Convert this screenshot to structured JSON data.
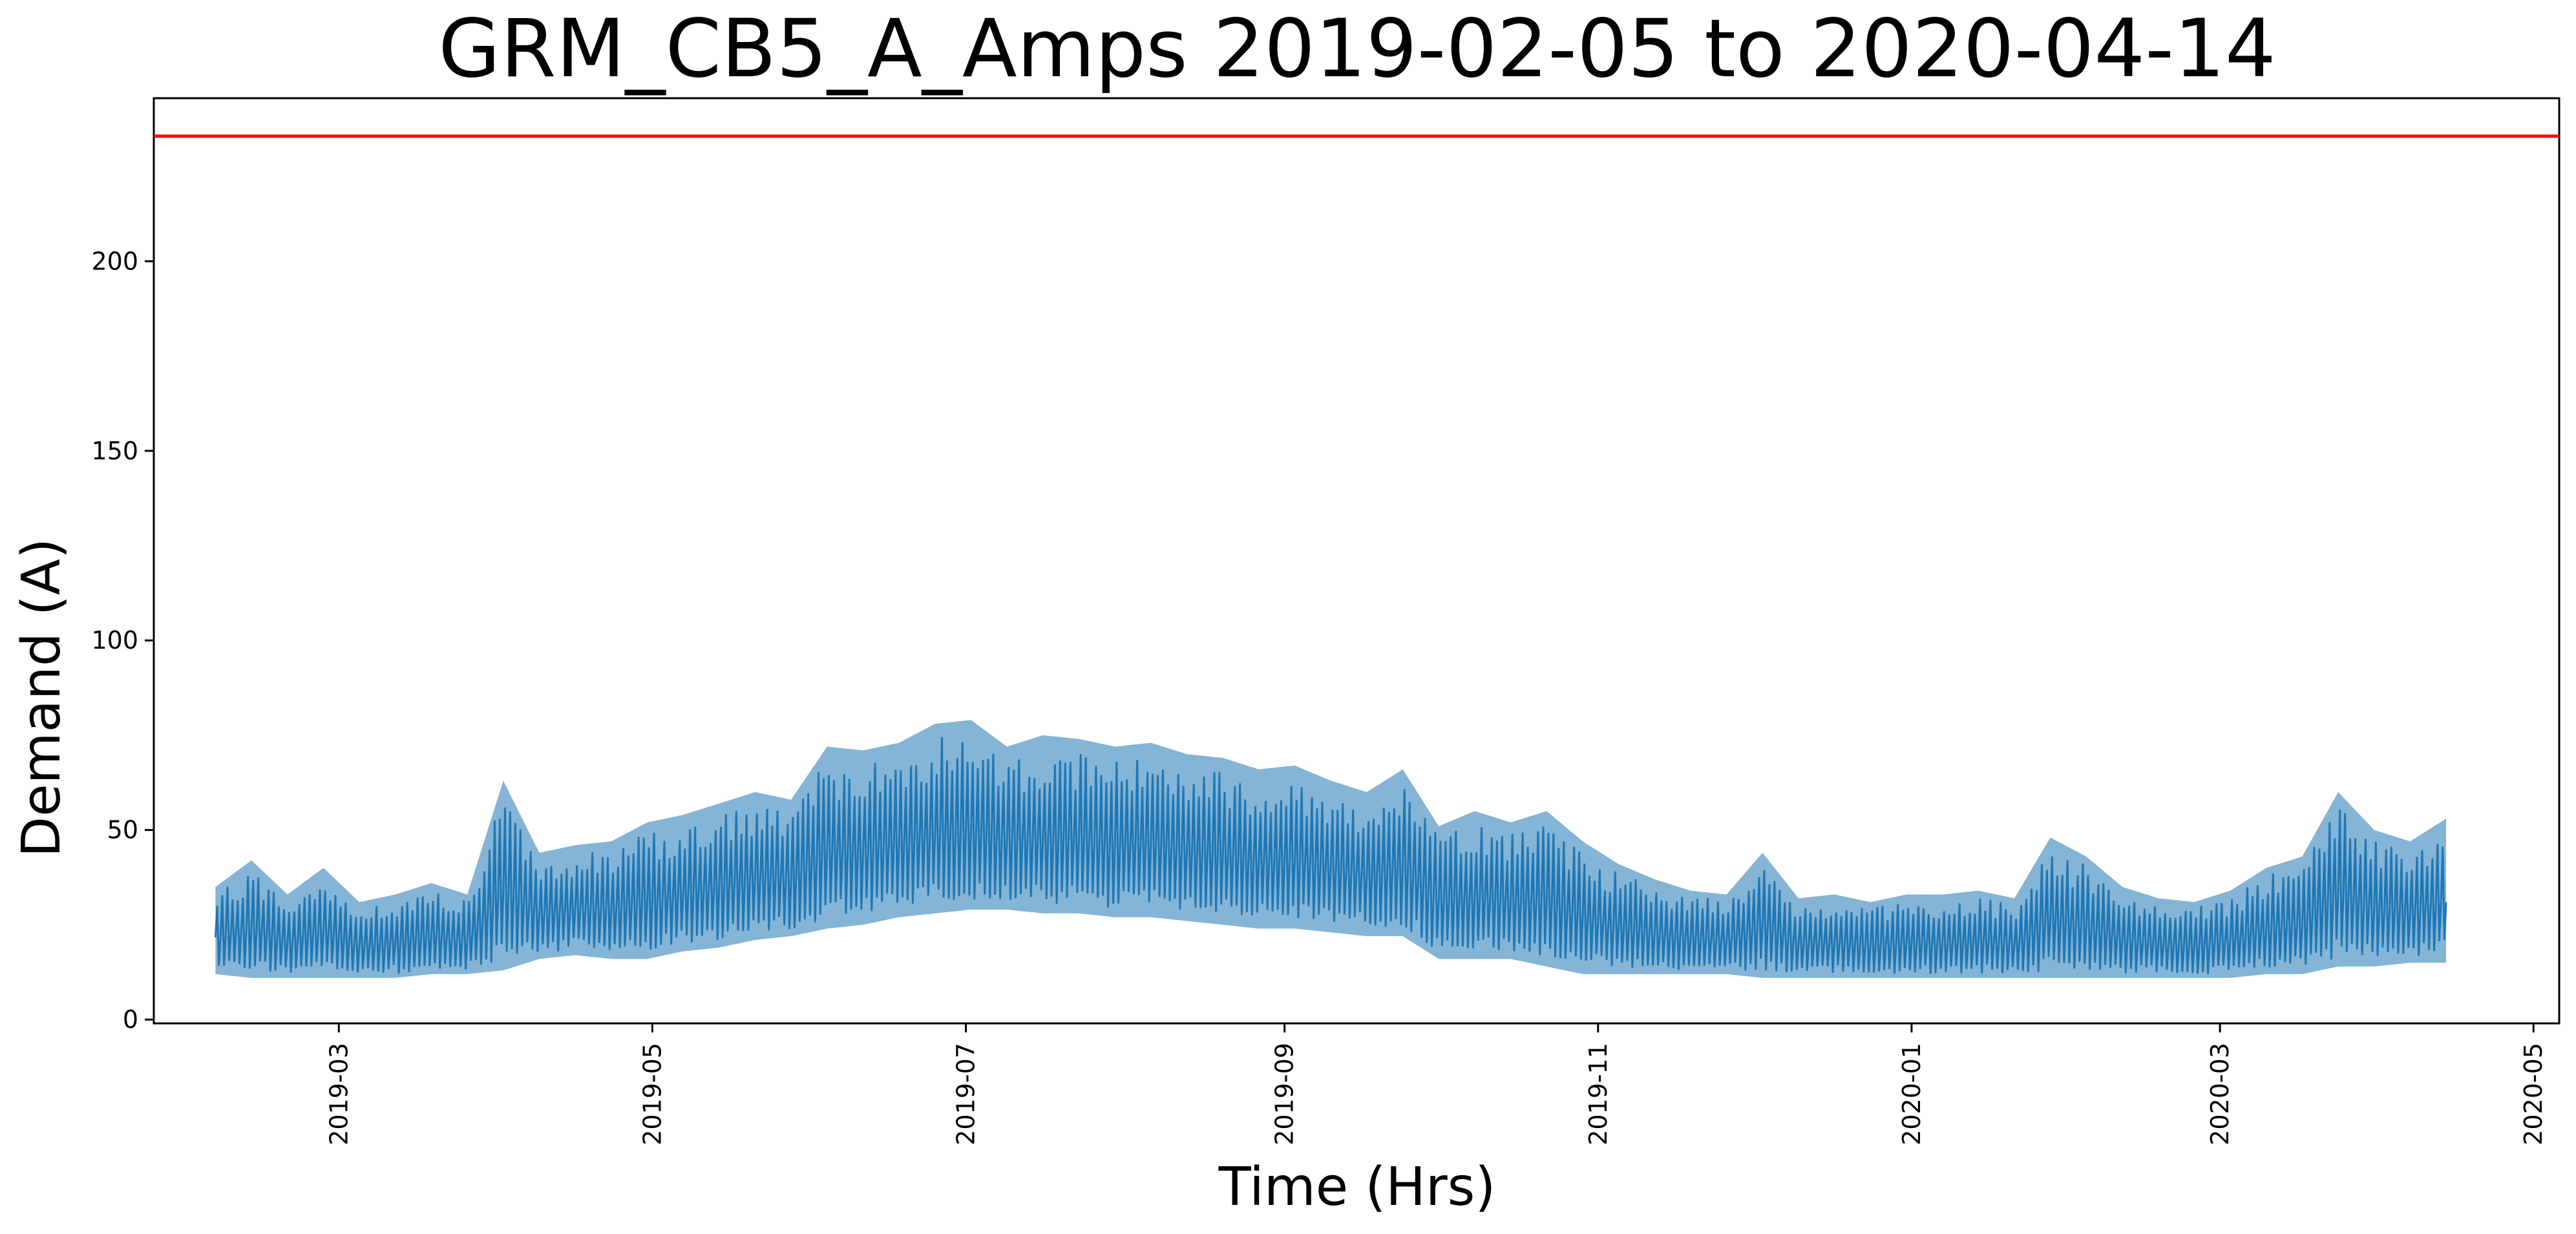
{
  "chart_data": {
    "type": "line",
    "title": "GRM_CB5_A_Amps 2019-02-05 to 2020-04-14",
    "xlabel": "Time (Hrs)",
    "ylabel": "Demand (A)",
    "xlim": [
      "2019-01-24",
      "2020-05-06"
    ],
    "ylim": [
      -1,
      243
    ],
    "grid": false,
    "yticks": [
      0,
      50,
      100,
      150,
      200
    ],
    "xticks": [
      "2019-03",
      "2019-05",
      "2019-07",
      "2019-09",
      "2019-11",
      "2020-01",
      "2020-03",
      "2020-05"
    ],
    "threshold": {
      "value": 233,
      "color": "#ff0000"
    },
    "series": [
      {
        "color": "#1f77b4",
        "x": [
          "2019-02-05",
          "2019-02-12",
          "2019-02-19",
          "2019-02-26",
          "2019-03-05",
          "2019-03-12",
          "2019-03-19",
          "2019-03-26",
          "2019-04-02",
          "2019-04-09",
          "2019-04-16",
          "2019-04-23",
          "2019-04-30",
          "2019-05-07",
          "2019-05-14",
          "2019-05-21",
          "2019-05-28",
          "2019-06-04",
          "2019-06-11",
          "2019-06-18",
          "2019-06-25",
          "2019-07-02",
          "2019-07-09",
          "2019-07-16",
          "2019-07-23",
          "2019-07-30",
          "2019-08-06",
          "2019-08-13",
          "2019-08-20",
          "2019-08-27",
          "2019-09-03",
          "2019-09-10",
          "2019-09-17",
          "2019-09-24",
          "2019-10-01",
          "2019-10-08",
          "2019-10-15",
          "2019-10-22",
          "2019-10-29",
          "2019-11-05",
          "2019-11-12",
          "2019-11-19",
          "2019-11-26",
          "2019-12-03",
          "2019-12-10",
          "2019-12-17",
          "2019-12-24",
          "2019-12-31",
          "2020-01-07",
          "2020-01-14",
          "2020-01-21",
          "2020-01-28",
          "2020-02-04",
          "2020-02-11",
          "2020-02-18",
          "2020-02-25",
          "2020-03-03",
          "2020-03-10",
          "2020-03-17",
          "2020-03-24",
          "2020-03-31",
          "2020-04-07",
          "2020-04-14"
        ],
        "min": [
          12,
          11,
          11,
          11,
          11,
          11,
          12,
          12,
          13,
          16,
          17,
          16,
          16,
          18,
          19,
          21,
          22,
          24,
          25,
          27,
          28,
          29,
          29,
          28,
          28,
          27,
          27,
          26,
          25,
          24,
          24,
          23,
          22,
          22,
          16,
          16,
          16,
          14,
          12,
          12,
          12,
          12,
          12,
          11,
          11,
          11,
          11,
          11,
          11,
          11,
          11,
          11,
          11,
          11,
          11,
          11,
          11,
          12,
          12,
          14,
          14,
          15,
          15
        ],
        "max": [
          35,
          42,
          33,
          40,
          31,
          33,
          36,
          33,
          63,
          44,
          46,
          47,
          52,
          54,
          57,
          60,
          58,
          72,
          71,
          73,
          78,
          79,
          72,
          75,
          74,
          72,
          73,
          70,
          69,
          66,
          67,
          63,
          60,
          66,
          51,
          55,
          52,
          55,
          47,
          41,
          37,
          34,
          33,
          44,
          32,
          33,
          31,
          33,
          33,
          34,
          32,
          48,
          43,
          35,
          32,
          31,
          34,
          40,
          43,
          60,
          50,
          47,
          53
        ]
      }
    ]
  }
}
